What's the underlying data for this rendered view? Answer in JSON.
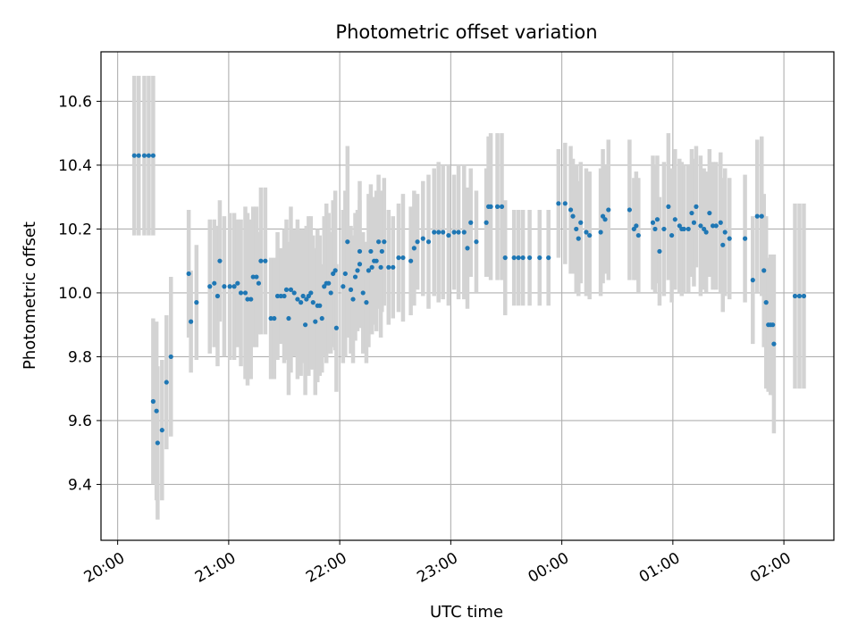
{
  "chart_data": {
    "type": "scatter",
    "title": "Photometric offset variation",
    "xlabel": "UTC time",
    "ylabel": "Photometric offset",
    "x_unit": "hours (UTC, continuing past midnight)",
    "xlim": [
      19.85,
      26.45
    ],
    "ylim": [
      9.225,
      10.755
    ],
    "x_ticks": [
      20,
      21,
      22,
      23,
      24,
      25,
      26
    ],
    "x_tick_labels": [
      "20:00",
      "21:00",
      "22:00",
      "23:00",
      "00:00",
      "01:00",
      "02:00"
    ],
    "y_ticks": [
      9.4,
      9.6,
      9.8,
      10.0,
      10.2,
      10.4,
      10.6
    ],
    "y_tick_labels": [
      "9.4",
      "9.6",
      "9.8",
      "10.0",
      "10.2",
      "10.4",
      "10.6"
    ],
    "grid": true,
    "colors": {
      "points": "#1f77b4",
      "errorbars": "#d3d3d3",
      "grid": "#b0b0b0"
    },
    "series": [
      {
        "values": [
          [
            20.15,
            10.43,
            0.25
          ],
          [
            20.19,
            10.43,
            0.25
          ],
          [
            20.24,
            10.43,
            0.25
          ],
          [
            20.28,
            10.43,
            0.25
          ],
          [
            20.32,
            10.43,
            0.25
          ],
          [
            20.32,
            9.66,
            0.26
          ],
          [
            20.35,
            9.63,
            0.28
          ],
          [
            20.36,
            9.53,
            0.24
          ],
          [
            20.4,
            9.57,
            0.22
          ],
          [
            20.44,
            9.72,
            0.21
          ],
          [
            20.48,
            9.8,
            0.25
          ],
          [
            20.64,
            10.06,
            0.2
          ],
          [
            20.66,
            9.91,
            0.16
          ],
          [
            20.71,
            9.97,
            0.18
          ],
          [
            20.83,
            10.02,
            0.21
          ],
          [
            20.87,
            10.03,
            0.2
          ],
          [
            20.9,
            9.99,
            0.22
          ],
          [
            20.92,
            10.1,
            0.19
          ],
          [
            20.96,
            10.02,
            0.22
          ],
          [
            21.01,
            10.02,
            0.23
          ],
          [
            21.05,
            10.02,
            0.23
          ],
          [
            21.08,
            10.03,
            0.2
          ],
          [
            21.11,
            10.0,
            0.23
          ],
          [
            21.15,
            10.0,
            0.27
          ],
          [
            21.17,
            9.98,
            0.27
          ],
          [
            21.2,
            9.98,
            0.25
          ],
          [
            21.22,
            10.05,
            0.22
          ],
          [
            21.25,
            10.05,
            0.22
          ],
          [
            21.27,
            10.03,
            0.16
          ],
          [
            21.29,
            10.1,
            0.23
          ],
          [
            21.33,
            10.1,
            0.23
          ],
          [
            21.38,
            9.92,
            0.19
          ],
          [
            21.41,
            9.92,
            0.19
          ],
          [
            21.44,
            9.99,
            0.2
          ],
          [
            21.47,
            9.99,
            0.15
          ],
          [
            21.5,
            9.99,
            0.21
          ],
          [
            21.52,
            10.01,
            0.22
          ],
          [
            21.54,
            9.92,
            0.24
          ],
          [
            21.56,
            10.01,
            0.26
          ],
          [
            21.59,
            10.0,
            0.2
          ],
          [
            21.62,
            9.98,
            0.25
          ],
          [
            21.65,
            9.97,
            0.23
          ],
          [
            21.67,
            9.99,
            0.21
          ],
          [
            21.69,
            9.9,
            0.22
          ],
          [
            21.7,
            9.98,
            0.23
          ],
          [
            21.72,
            9.99,
            0.25
          ],
          [
            21.74,
            10.0,
            0.24
          ],
          [
            21.76,
            9.97,
            0.21
          ],
          [
            21.78,
            9.91,
            0.23
          ],
          [
            21.8,
            9.96,
            0.24
          ],
          [
            21.82,
            9.96,
            0.22
          ],
          [
            21.84,
            9.92,
            0.17
          ],
          [
            21.86,
            10.02,
            0.22
          ],
          [
            21.88,
            10.03,
            0.25
          ],
          [
            21.9,
            10.03,
            0.22
          ],
          [
            21.92,
            10.0,
            0.19
          ],
          [
            21.94,
            10.06,
            0.23
          ],
          [
            21.96,
            10.07,
            0.25
          ],
          [
            21.97,
            9.89,
            0.2
          ],
          [
            22.03,
            10.02,
            0.24
          ],
          [
            22.05,
            10.06,
            0.26
          ],
          [
            22.07,
            10.16,
            0.3
          ],
          [
            22.1,
            10.01,
            0.2
          ],
          [
            22.12,
            9.98,
            0.2
          ],
          [
            22.14,
            10.05,
            0.2
          ],
          [
            22.16,
            10.07,
            0.19
          ],
          [
            22.18,
            10.09,
            0.2
          ],
          [
            22.18,
            10.13,
            0.22
          ],
          [
            22.21,
            10.0,
            0.19
          ],
          [
            22.24,
            9.97,
            0.19
          ],
          [
            22.26,
            10.07,
            0.24
          ],
          [
            22.28,
            10.13,
            0.21
          ],
          [
            22.29,
            10.08,
            0.21
          ],
          [
            22.31,
            10.1,
            0.2
          ],
          [
            22.33,
            10.1,
            0.22
          ],
          [
            22.35,
            10.16,
            0.21
          ],
          [
            22.37,
            10.08,
            0.22
          ],
          [
            22.38,
            10.13,
            0.19
          ],
          [
            22.4,
            10.16,
            0.2
          ],
          [
            22.44,
            10.08,
            0.18
          ],
          [
            22.48,
            10.08,
            0.16
          ],
          [
            22.53,
            10.11,
            0.17
          ],
          [
            22.57,
            10.11,
            0.2
          ],
          [
            22.64,
            10.1,
            0.17
          ],
          [
            22.67,
            10.14,
            0.18
          ],
          [
            22.7,
            10.16,
            0.15
          ],
          [
            22.75,
            10.17,
            0.18
          ],
          [
            22.8,
            10.16,
            0.21
          ],
          [
            22.85,
            10.19,
            0.2
          ],
          [
            22.89,
            10.19,
            0.22
          ],
          [
            22.93,
            10.19,
            0.21
          ],
          [
            22.98,
            10.18,
            0.22
          ],
          [
            23.03,
            10.19,
            0.18
          ],
          [
            23.07,
            10.19,
            0.21
          ],
          [
            23.12,
            10.19,
            0.21
          ],
          [
            23.15,
            10.14,
            0.19
          ],
          [
            23.18,
            10.22,
            0.17
          ],
          [
            23.23,
            10.16,
            0.16
          ],
          [
            23.32,
            10.22,
            0.17
          ],
          [
            23.34,
            10.27,
            0.22
          ],
          [
            23.36,
            10.27,
            0.23
          ],
          [
            23.42,
            10.27,
            0.23
          ],
          [
            23.46,
            10.27,
            0.23
          ],
          [
            23.49,
            10.11,
            0.18
          ],
          [
            23.57,
            10.11,
            0.15
          ],
          [
            23.61,
            10.11,
            0.15
          ],
          [
            23.65,
            10.11,
            0.15
          ],
          [
            23.71,
            10.11,
            0.15
          ],
          [
            23.8,
            10.11,
            0.15
          ],
          [
            23.88,
            10.11,
            0.15
          ],
          [
            23.97,
            10.28,
            0.17
          ],
          [
            24.03,
            10.28,
            0.19
          ],
          [
            24.08,
            10.26,
            0.2
          ],
          [
            24.1,
            10.24,
            0.18
          ],
          [
            24.13,
            10.2,
            0.2
          ],
          [
            24.15,
            10.17,
            0.18
          ],
          [
            24.17,
            10.22,
            0.19
          ],
          [
            24.22,
            10.19,
            0.2
          ],
          [
            24.25,
            10.18,
            0.2
          ],
          [
            24.35,
            10.19,
            0.2
          ],
          [
            24.37,
            10.24,
            0.21
          ],
          [
            24.39,
            10.23,
            0.17
          ],
          [
            24.42,
            10.26,
            0.22
          ],
          [
            24.61,
            10.26,
            0.22
          ],
          [
            24.65,
            10.2,
            0.16
          ],
          [
            24.67,
            10.21,
            0.17
          ],
          [
            24.69,
            10.18,
            0.18
          ],
          [
            24.82,
            10.22,
            0.21
          ],
          [
            24.84,
            10.2,
            0.2
          ],
          [
            24.86,
            10.23,
            0.2
          ],
          [
            24.88,
            10.13,
            0.17
          ],
          [
            24.92,
            10.2,
            0.21
          ],
          [
            24.96,
            10.27,
            0.23
          ],
          [
            24.99,
            10.18,
            0.21
          ],
          [
            25.02,
            10.23,
            0.22
          ],
          [
            25.06,
            10.21,
            0.21
          ],
          [
            25.08,
            10.2,
            0.21
          ],
          [
            25.1,
            10.2,
            0.2
          ],
          [
            25.14,
            10.2,
            0.2
          ],
          [
            25.17,
            10.25,
            0.2
          ],
          [
            25.19,
            10.22,
            0.2
          ],
          [
            25.21,
            10.27,
            0.19
          ],
          [
            25.25,
            10.21,
            0.22
          ],
          [
            25.28,
            10.2,
            0.19
          ],
          [
            25.3,
            10.19,
            0.19
          ],
          [
            25.33,
            10.25,
            0.2
          ],
          [
            25.36,
            10.21,
            0.2
          ],
          [
            25.39,
            10.21,
            0.2
          ],
          [
            25.43,
            10.22,
            0.22
          ],
          [
            25.45,
            10.15,
            0.21
          ],
          [
            25.47,
            10.19,
            0.2
          ],
          [
            25.51,
            10.17,
            0.19
          ],
          [
            25.65,
            10.17,
            0.2
          ],
          [
            25.72,
            10.04,
            0.2
          ],
          [
            25.76,
            10.24,
            0.24
          ],
          [
            25.8,
            10.24,
            0.25
          ],
          [
            25.82,
            10.07,
            0.24
          ],
          [
            25.84,
            9.97,
            0.27
          ],
          [
            25.86,
            9.9,
            0.21
          ],
          [
            25.88,
            9.9,
            0.22
          ],
          [
            25.9,
            9.9,
            0.22
          ],
          [
            25.91,
            9.84,
            0.28
          ],
          [
            26.1,
            9.99,
            0.29
          ],
          [
            26.14,
            9.99,
            0.29
          ],
          [
            26.18,
            9.99,
            0.29
          ]
        ]
      }
    ]
  }
}
